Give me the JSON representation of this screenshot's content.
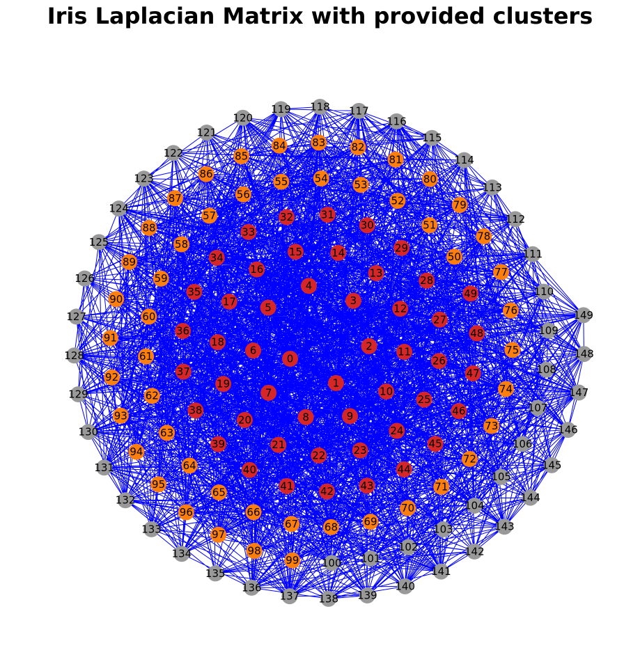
{
  "title": "Iris Laplacian Matrix with provided clusters",
  "graph": {
    "layout": "spiral",
    "node_count": 150,
    "node_labels_start": 0,
    "edge_color": "#0000ff",
    "clusters": [
      {
        "nodes_from": 0,
        "nodes_to": 49,
        "color": "#d62728"
      },
      {
        "nodes_from": 50,
        "nodes_to": 99,
        "color": "#ff7f0e"
      },
      {
        "nodes_from": 100,
        "nodes_to": 149,
        "color": "#999999"
      }
    ]
  }
}
